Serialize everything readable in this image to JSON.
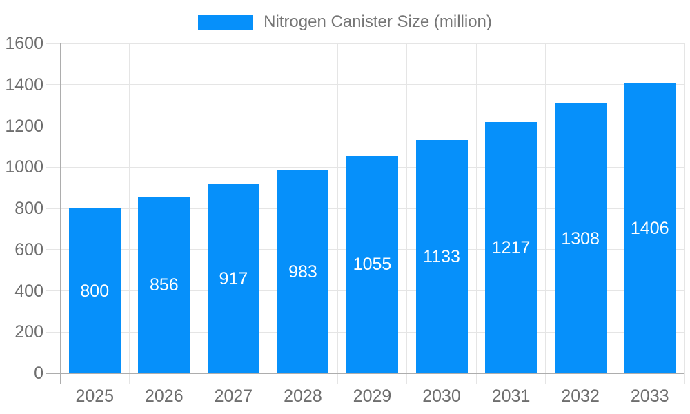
{
  "legend": {
    "label": "Nitrogen Canister Size (million)"
  },
  "chart_data": {
    "type": "bar",
    "title": "Nitrogen Canister Size (million)",
    "series_name": "Nitrogen Canister Size (million)",
    "categories": [
      "2025",
      "2026",
      "2027",
      "2028",
      "2029",
      "2030",
      "2031",
      "2032",
      "2033"
    ],
    "values": [
      800,
      856,
      917,
      983,
      1055,
      1133,
      1217,
      1308,
      1406
    ],
    "value_labels": [
      "800",
      "856",
      "917",
      "983",
      "1055",
      "1133",
      "1217",
      "1308",
      "1406"
    ],
    "xlabel": "",
    "ylabel": "",
    "ylim": [
      0,
      1600
    ],
    "ytick_step": 200,
    "yticks": [
      0,
      200,
      400,
      600,
      800,
      1000,
      1200,
      1400,
      1600
    ],
    "grid": true,
    "legend_position": "top",
    "value_label_position": "inside-center",
    "colors": {
      "bar": "#0690FA",
      "grid": "#E5E5E5",
      "axis": "#ADADAD",
      "tick_label": "#6E6E6E",
      "legend_label": "#757575",
      "value_label": "#FFFFFF",
      "background": "#FFFFFF"
    }
  }
}
